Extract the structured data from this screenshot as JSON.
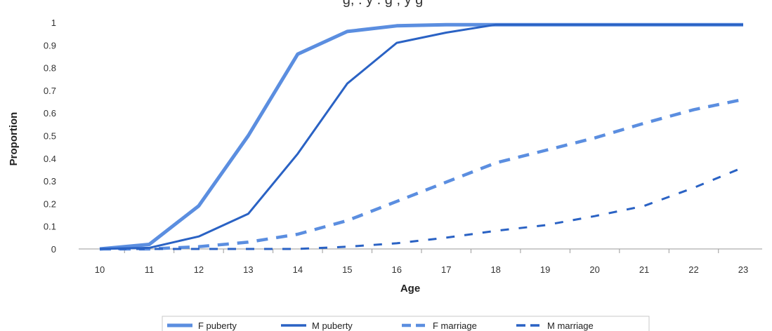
{
  "chart_data": {
    "type": "line",
    "title": "",
    "xlabel": "Age",
    "ylabel": "Proportion",
    "x": [
      10,
      11,
      12,
      13,
      14,
      15,
      16,
      17,
      18,
      19,
      20,
      21,
      22,
      23
    ],
    "xticks": [
      "10",
      "11",
      "12",
      "13",
      "14",
      "15",
      "16",
      "17",
      "18",
      "19",
      "20",
      "21",
      "22",
      "23"
    ],
    "yticks": [
      "0",
      "0.1",
      "0.2",
      "0.3",
      "0.4",
      "0.5",
      "0.6",
      "0.7",
      "0.8",
      "0.9",
      "1"
    ],
    "ylim": [
      0,
      1
    ],
    "grid": false,
    "legend_position": "bottom",
    "series": [
      {
        "name": "F puberty",
        "color": "#5b8ee0",
        "style": "solid-thick",
        "values": [
          0.0,
          0.02,
          0.19,
          0.5,
          0.86,
          0.96,
          0.985,
          0.99,
          0.99,
          0.99,
          0.99,
          0.99,
          0.99,
          0.99
        ]
      },
      {
        "name": "M puberty",
        "color": "#2a62c4",
        "style": "solid",
        "values": [
          0.0,
          0.005,
          0.055,
          0.155,
          0.42,
          0.73,
          0.91,
          0.955,
          0.99,
          0.99,
          0.99,
          0.99,
          0.99,
          0.99
        ]
      },
      {
        "name": "F marriage",
        "color": "#5b8ee0",
        "style": "dashed-thick",
        "values": [
          0.0,
          0.0,
          0.01,
          0.03,
          0.065,
          0.125,
          0.21,
          0.295,
          0.38,
          0.435,
          0.49,
          0.555,
          0.615,
          0.66
        ]
      },
      {
        "name": "M marriage",
        "color": "#2a62c4",
        "style": "dashed",
        "values": [
          0.0,
          0.0,
          0.0,
          0.0,
          0.0,
          0.01,
          0.025,
          0.05,
          0.08,
          0.105,
          0.145,
          0.19,
          0.27,
          0.36
        ]
      }
    ]
  },
  "legend": {
    "items": [
      "F puberty",
      "M puberty",
      "F marriage",
      "M marriage"
    ]
  },
  "cropped_title": "g, . y . g , y g"
}
